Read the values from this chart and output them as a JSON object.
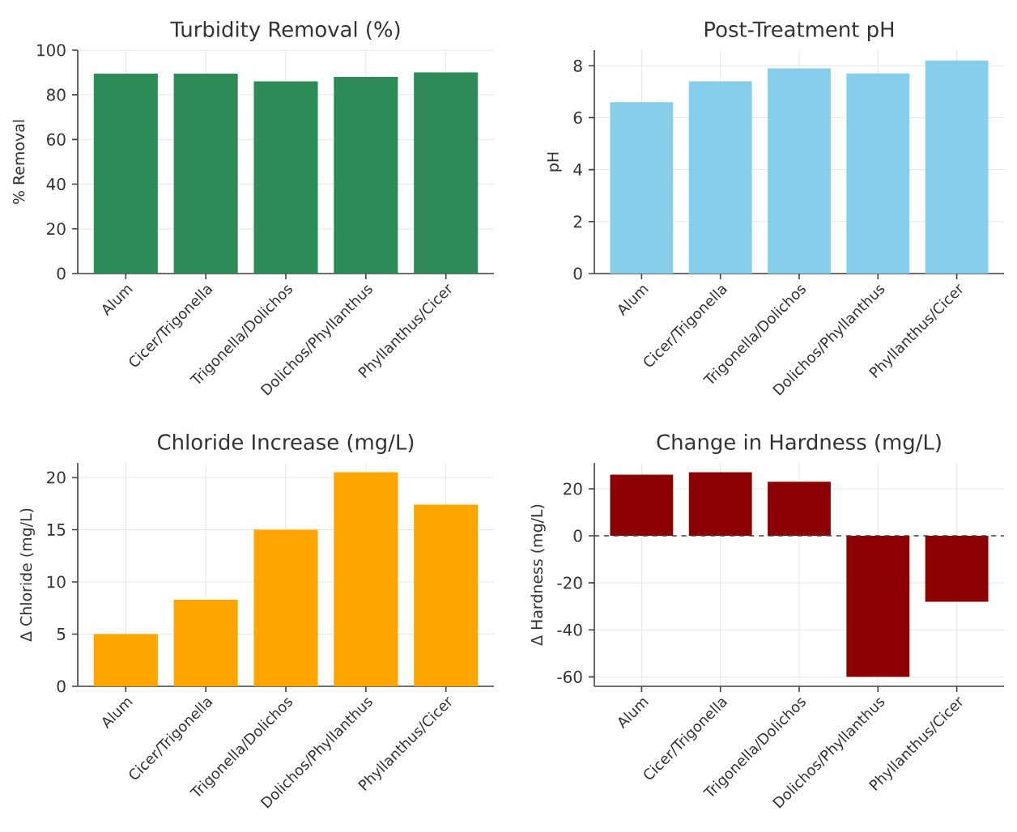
{
  "chart_data": [
    {
      "type": "bar",
      "title": "Turbidity Removal (%)",
      "ylabel": "% Removal",
      "categories": [
        "Alum",
        "Cicer/Trigonella",
        "Trigonella/Dolichos",
        "Dolichos/Phyllanthus",
        "Phyllanthus/Cicer"
      ],
      "values": [
        89.5,
        89.5,
        86,
        88,
        90
      ],
      "color": "#2e8b57",
      "ylim": [
        0,
        100
      ],
      "yticks": [
        0,
        20,
        40,
        60,
        80,
        100
      ],
      "grid": true
    },
    {
      "type": "bar",
      "title": "Post-Treatment pH",
      "ylabel": "pH",
      "categories": [
        "Alum",
        "Cicer/Trigonella",
        "Trigonella/Dolichos",
        "Dolichos/Phyllanthus",
        "Phyllanthus/Cicer"
      ],
      "values": [
        6.6,
        7.4,
        7.9,
        7.7,
        8.2
      ],
      "color": "#87ceeb",
      "ylim": [
        0,
        8.6
      ],
      "yticks": [
        0,
        2,
        4,
        6,
        8
      ],
      "grid": true
    },
    {
      "type": "bar",
      "title": "Chloride Increase (mg/L)",
      "ylabel": "Δ Chloride (mg/L)",
      "categories": [
        "Alum",
        "Cicer/Trigonella",
        "Trigonella/Dolichos",
        "Dolichos/Phyllanthus",
        "Phyllanthus/Cicer"
      ],
      "values": [
        5,
        8.3,
        15,
        20.5,
        17.4
      ],
      "color": "#ffa500",
      "ylim": [
        0,
        21.4
      ],
      "yticks": [
        0,
        5,
        10,
        15,
        20
      ],
      "grid": true
    },
    {
      "type": "bar",
      "title": "Change in Hardness (mg/L)",
      "ylabel": "Δ Hardness (mg/L)",
      "categories": [
        "Alum",
        "Cicer/Trigonella",
        "Trigonella/Dolichos",
        "Dolichos/Phyllanthus",
        "Phyllanthus/Cicer"
      ],
      "values": [
        26,
        27,
        23,
        -60,
        -28
      ],
      "color": "#8b0000",
      "ylim": [
        -64,
        31
      ],
      "yticks": [
        -60,
        -40,
        -20,
        0,
        20
      ],
      "grid": true,
      "ref_lines": [
        {
          "axis": "y",
          "value": 0,
          "color": "#444444",
          "line_style": "dashed"
        }
      ]
    }
  ]
}
